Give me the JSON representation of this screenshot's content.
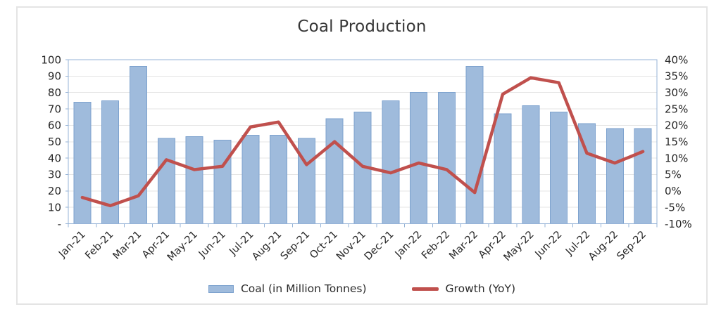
{
  "chart_data": {
    "type": "combo",
    "title": "Coal Production",
    "categories": [
      "Jan-21",
      "Feb-21",
      "Mar-21",
      "Apr-21",
      "May-21",
      "Jun-21",
      "Jul-21",
      "Aug-21",
      "Sep-21",
      "Oct-21",
      "Nov-21",
      "Dec-21",
      "Jan-22",
      "Feb-22",
      "Mar-22",
      "Apr-22",
      "May-22",
      "Jun-22",
      "Jul-22",
      "Aug-22",
      "Sep-22"
    ],
    "series": [
      {
        "name": "Coal (in Million Tonnes)",
        "type": "bar",
        "axis": "left",
        "values": [
          74,
          75,
          96,
          52,
          53,
          51,
          54,
          54,
          52,
          64,
          68,
          75,
          80,
          80,
          96,
          67,
          72,
          68,
          61,
          58,
          58
        ]
      },
      {
        "name": "Growth (YoY)",
        "type": "line",
        "axis": "right",
        "values": [
          -2,
          -4.5,
          -1.5,
          9.5,
          6.5,
          7.5,
          19.5,
          21,
          8,
          15,
          7.5,
          5.5,
          8.5,
          6.5,
          -0.5,
          29.5,
          34.5,
          33,
          11.5,
          8.5,
          12
        ]
      }
    ],
    "left_axis": {
      "min": 0,
      "max": 100,
      "tick_labels": [
        "100",
        "90",
        "80",
        "70",
        "60",
        "50",
        "40",
        "30",
        "20",
        "10",
        "-"
      ]
    },
    "right_axis": {
      "min": -10,
      "max": 40,
      "tick_labels": [
        "40%",
        "35%",
        "30%",
        "25%",
        "20%",
        "15%",
        "10%",
        "5%",
        "0%",
        "-5%",
        "-10%"
      ]
    },
    "grid": true,
    "legend_position": "bottom",
    "colors": {
      "bar_fill": "#9fbbdc",
      "bar_border": "#7da2ce",
      "line": "#c0504d",
      "gridline": "#e4e4e4",
      "plot_border": "#95b3d7",
      "axis_text": "#262626",
      "title_text": "#363636"
    }
  },
  "legend": {
    "coal_label": "Coal (in Million Tonnes)",
    "growth_label": "Growth (YoY)"
  }
}
